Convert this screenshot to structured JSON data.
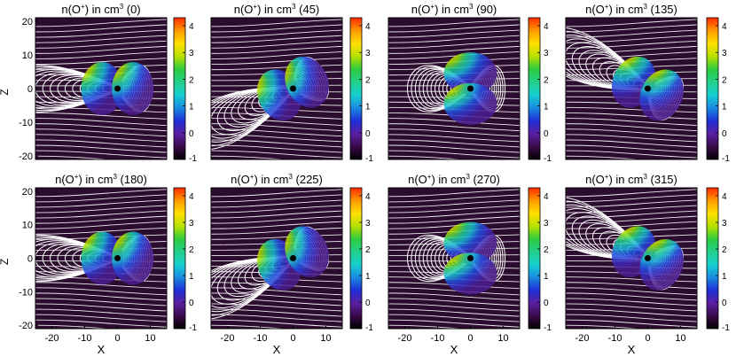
{
  "colors": {
    "background": "#2c0d2f",
    "field_line": "#ffffff",
    "earth": "#000000"
  },
  "colormap": [
    "#000000",
    "#3a0a4a",
    "#5a1fa3",
    "#1e2fd6",
    "#1a8be0",
    "#16d0d0",
    "#22d08a",
    "#2ecc40",
    "#b8e000",
    "#ffe000",
    "#ff9900",
    "#ff2a00"
  ],
  "chart_data": [
    {
      "type": "heatmap",
      "title_base": "n(O",
      "title_sup": "+",
      "title_mid": ") in cm",
      "title_sup2": "3",
      "title_arg": " (0)",
      "angle": 0,
      "xlabel": "",
      "ylabel": "Z",
      "xlim": [
        -25,
        15
      ],
      "ylim": [
        -21,
        21
      ],
      "xticks": [],
      "yticks": [
        "-20",
        "-10",
        "0",
        "10",
        "20"
      ],
      "cbar_ticks": [
        "-1",
        "0",
        "1",
        "2",
        "3",
        "4"
      ],
      "cbar_range": [
        -1,
        4.3
      ]
    },
    {
      "type": "heatmap",
      "title_base": "n(O",
      "title_sup": "+",
      "title_mid": ") in cm",
      "title_sup2": "3",
      "title_arg": " (45)",
      "angle": 45,
      "xlabel": "",
      "ylabel": "",
      "xlim": [
        -25,
        15
      ],
      "ylim": [
        -21,
        21
      ],
      "xticks": [],
      "yticks": [],
      "cbar_ticks": [
        "-1",
        "0",
        "1",
        "2",
        "3",
        "4"
      ],
      "cbar_range": [
        -1,
        4.3
      ]
    },
    {
      "type": "heatmap",
      "title_base": "n(O",
      "title_sup": "+",
      "title_mid": ") in cm",
      "title_sup2": "3",
      "title_arg": " (90)",
      "angle": 90,
      "xlabel": "",
      "ylabel": "",
      "xlim": [
        -25,
        15
      ],
      "ylim": [
        -21,
        21
      ],
      "xticks": [],
      "yticks": [],
      "cbar_ticks": [
        "-1",
        "0",
        "1",
        "2",
        "3",
        "4"
      ],
      "cbar_range": [
        -1,
        4.3
      ]
    },
    {
      "type": "heatmap",
      "title_base": "n(O",
      "title_sup": "+",
      "title_mid": ") in cm",
      "title_sup2": "3",
      "title_arg": " (135)",
      "angle": 135,
      "xlabel": "",
      "ylabel": "",
      "xlim": [
        -25,
        15
      ],
      "ylim": [
        -21,
        21
      ],
      "xticks": [],
      "yticks": [],
      "cbar_ticks": [
        "-1",
        "0",
        "1",
        "2",
        "3",
        "4"
      ],
      "cbar_range": [
        -1,
        4.3
      ]
    },
    {
      "type": "heatmap",
      "title_base": "n(O",
      "title_sup": "+",
      "title_mid": ") in cm",
      "title_sup2": "3",
      "title_arg": " (180)",
      "angle": 180,
      "xlabel": "X",
      "ylabel": "Z",
      "xlim": [
        -25,
        15
      ],
      "ylim": [
        -21,
        21
      ],
      "xticks": [
        "-20",
        "-10",
        "0",
        "10"
      ],
      "yticks": [
        "-20",
        "-10",
        "0",
        "10",
        "20"
      ],
      "cbar_ticks": [
        "-1",
        "0",
        "1",
        "2",
        "3",
        "4"
      ],
      "cbar_range": [
        -1,
        4.3
      ]
    },
    {
      "type": "heatmap",
      "title_base": "n(O",
      "title_sup": "+",
      "title_mid": ") in cm",
      "title_sup2": "3",
      "title_arg": " (225)",
      "angle": 225,
      "xlabel": "X",
      "ylabel": "",
      "xlim": [
        -25,
        15
      ],
      "ylim": [
        -21,
        21
      ],
      "xticks": [
        "-20",
        "-10",
        "0",
        "10"
      ],
      "yticks": [],
      "cbar_ticks": [
        "-1",
        "0",
        "1",
        "2",
        "3",
        "4"
      ],
      "cbar_range": [
        -1,
        4.3
      ]
    },
    {
      "type": "heatmap",
      "title_base": "n(O",
      "title_sup": "+",
      "title_mid": ") in cm",
      "title_sup2": "3",
      "title_arg": " (270)",
      "angle": 270,
      "xlabel": "X",
      "ylabel": "",
      "xlim": [
        -25,
        15
      ],
      "ylim": [
        -21,
        21
      ],
      "xticks": [
        "-20",
        "-10",
        "0",
        "10"
      ],
      "yticks": [],
      "cbar_ticks": [
        "-1",
        "0",
        "1",
        "2",
        "3",
        "4"
      ],
      "cbar_range": [
        -1,
        4.3
      ]
    },
    {
      "type": "heatmap",
      "title_base": "n(O",
      "title_sup": "+",
      "title_mid": ") in cm",
      "title_sup2": "3",
      "title_arg": " (315)",
      "angle": 315,
      "xlabel": "X",
      "ylabel": "",
      "xlim": [
        -25,
        15
      ],
      "ylim": [
        -21,
        21
      ],
      "xticks": [
        "-20",
        "-10",
        "0",
        "10"
      ],
      "yticks": [],
      "cbar_ticks": [
        "-1",
        "0",
        "1",
        "2",
        "3",
        "4"
      ],
      "cbar_range": [
        -1,
        4.3
      ]
    }
  ]
}
